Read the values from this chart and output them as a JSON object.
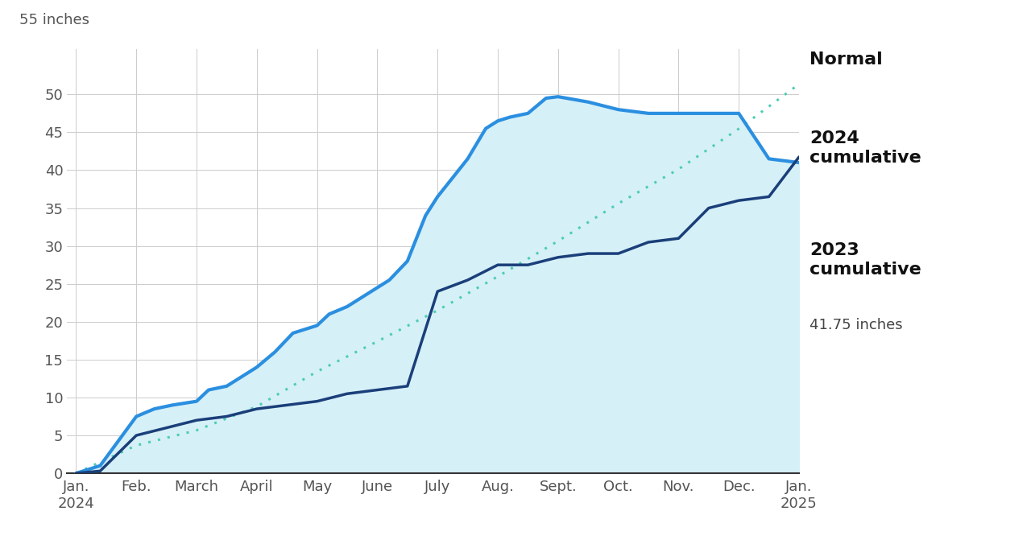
{
  "ylabel_top": "55 inches",
  "background_color": "#ffffff",
  "fill_color": "#d6f0f8",
  "normal_color": "#4ecdb4",
  "cumulative_2024_color": "#2b8fe0",
  "cumulative_2023_color": "#1a3f7a",
  "yticks": [
    0,
    5,
    10,
    15,
    20,
    25,
    30,
    35,
    40,
    45,
    50
  ],
  "ylim": [
    0,
    56
  ],
  "xlim": [
    -0.15,
    12.0
  ],
  "month_labels": [
    "Jan.\n2024",
    "Feb.",
    "March",
    "April",
    "May",
    "June",
    "July",
    "Aug.",
    "Sept.",
    "Oct.",
    "Nov.",
    "Dec.",
    "Jan.\n2025"
  ],
  "normal_x": [
    0,
    1,
    2,
    3,
    4,
    5,
    6,
    7,
    8,
    9,
    10,
    11,
    12
  ],
  "normal_y": [
    0,
    3.68,
    5.67,
    8.81,
    13.43,
    17.4,
    21.5,
    25.97,
    30.65,
    35.6,
    40.14,
    45.47,
    51.36
  ],
  "cum2024_x": [
    0,
    0.4,
    1.0,
    1.3,
    1.6,
    2.0,
    2.2,
    2.5,
    2.8,
    3.0,
    3.3,
    3.6,
    4.0,
    4.2,
    4.5,
    4.7,
    5.0,
    5.2,
    5.5,
    5.8,
    6.0,
    6.2,
    6.5,
    6.8,
    7.0,
    7.2,
    7.5,
    7.8,
    8.0,
    8.5,
    9.0,
    9.5,
    10.0,
    10.5,
    11.0,
    11.5,
    12.0
  ],
  "cum2024_y": [
    0,
    1.0,
    7.5,
    8.5,
    9.0,
    9.5,
    11.0,
    11.5,
    13.0,
    14.0,
    16.0,
    18.5,
    19.5,
    21.0,
    22.0,
    23.0,
    24.5,
    25.5,
    28.0,
    34.0,
    36.5,
    38.5,
    41.5,
    45.5,
    46.5,
    47.0,
    47.5,
    49.5,
    49.7,
    49.0,
    48.0,
    47.5,
    47.5,
    47.5,
    47.5,
    41.5,
    41.0
  ],
  "cum2023_x": [
    0,
    0.4,
    1.0,
    1.5,
    2.0,
    2.5,
    3.0,
    3.5,
    4.0,
    4.5,
    5.0,
    5.5,
    6.0,
    6.5,
    7.0,
    7.5,
    8.0,
    8.5,
    9.0,
    9.5,
    10.0,
    10.5,
    11.0,
    11.5,
    12.0
  ],
  "cum2023_y": [
    0,
    0.3,
    5.0,
    6.0,
    7.0,
    7.5,
    8.5,
    9.0,
    9.5,
    10.5,
    11.0,
    11.5,
    24.0,
    25.5,
    27.5,
    27.5,
    28.5,
    29.0,
    29.0,
    30.5,
    31.0,
    35.0,
    36.0,
    36.5,
    41.75
  ],
  "label_normal": "Normal",
  "label_2024": "2024\ncumulative",
  "label_2023": "2023\ncumulative",
  "label_2023_sub": "41.75 inches"
}
